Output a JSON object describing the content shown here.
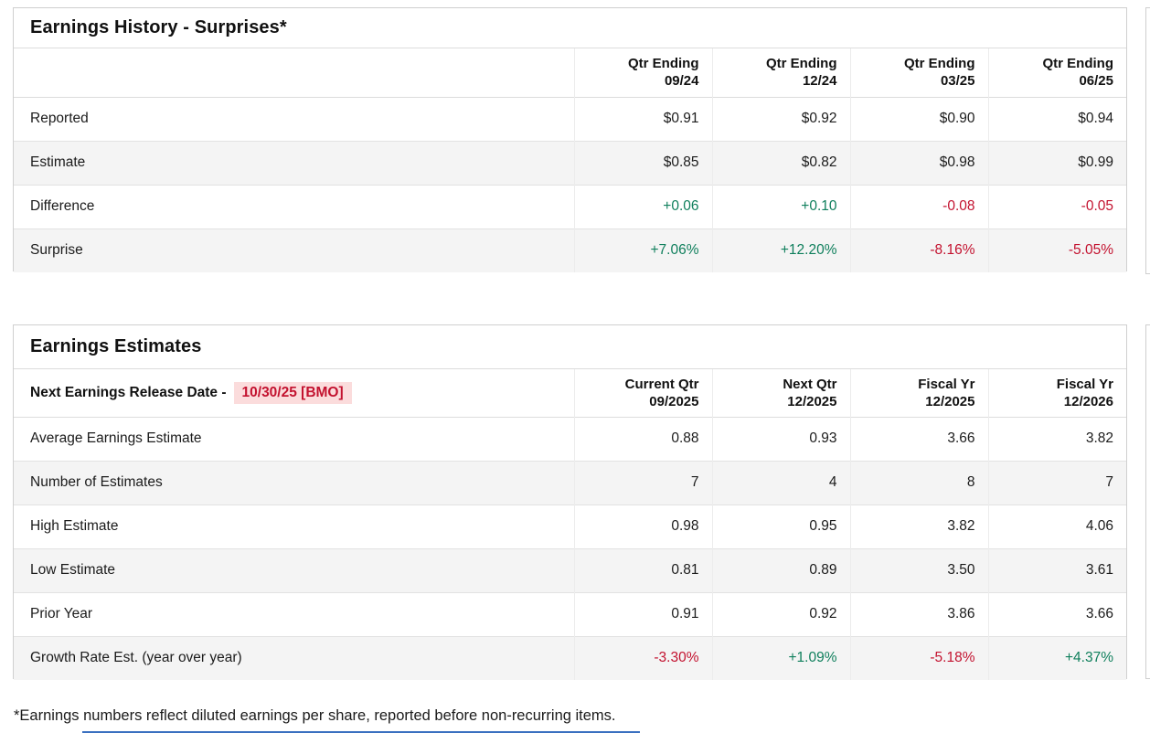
{
  "colors": {
    "positive_green": "#0f7f5c",
    "negative_red": "#c3122f",
    "highlight_pink": "#fbdcdc",
    "panel_border": "#cfcfcf",
    "divider": "#dcdcdc",
    "row_divider": "#e2e2e2",
    "cell_divider": "#ececec",
    "row_alt_bg": "#f4f4f4",
    "cutoff_blue": "#3a70c0"
  },
  "earnings_history": {
    "title": "Earnings History - Surprises*",
    "columns": [
      {
        "top": "Qtr Ending",
        "bottom": "09/24"
      },
      {
        "top": "Qtr Ending",
        "bottom": "12/24"
      },
      {
        "top": "Qtr Ending",
        "bottom": "03/25"
      },
      {
        "top": "Qtr Ending",
        "bottom": "06/25"
      }
    ],
    "rows": [
      {
        "label": "Reported",
        "values": [
          "$0.91",
          "$0.92",
          "$0.90",
          "$0.94"
        ]
      },
      {
        "label": "Estimate",
        "values": [
          "$0.85",
          "$0.82",
          "$0.98",
          "$0.99"
        ]
      },
      {
        "label": "Difference",
        "values": [
          "+0.06",
          "+0.10",
          "-0.08",
          "-0.05"
        ],
        "tones": [
          "pos",
          "pos",
          "neg",
          "neg"
        ]
      },
      {
        "label": "Surprise",
        "values": [
          "+7.06%",
          "+12.20%",
          "-8.16%",
          "-5.05%"
        ],
        "tones": [
          "pos",
          "pos",
          "neg",
          "neg"
        ]
      }
    ]
  },
  "earnings_estimates": {
    "title": "Earnings Estimates",
    "release_date_label": "Next Earnings Release Date -",
    "release_date_value": "10/30/25 [BMO]",
    "columns": [
      {
        "top": "Current Qtr",
        "bottom": "09/2025"
      },
      {
        "top": "Next Qtr",
        "bottom": "12/2025"
      },
      {
        "top": "Fiscal Yr",
        "bottom": "12/2025"
      },
      {
        "top": "Fiscal Yr",
        "bottom": "12/2026"
      }
    ],
    "rows": [
      {
        "label": "Average Earnings Estimate",
        "values": [
          "0.88",
          "0.93",
          "3.66",
          "3.82"
        ]
      },
      {
        "label": "Number of Estimates",
        "values": [
          "7",
          "4",
          "8",
          "7"
        ]
      },
      {
        "label": "High Estimate",
        "values": [
          "0.98",
          "0.95",
          "3.82",
          "4.06"
        ]
      },
      {
        "label": "Low Estimate",
        "values": [
          "0.81",
          "0.89",
          "3.50",
          "3.61"
        ]
      },
      {
        "label": "Prior Year",
        "values": [
          "0.91",
          "0.92",
          "3.86",
          "3.66"
        ]
      },
      {
        "label": "Growth Rate Est. (year over year)",
        "values": [
          "-3.30%",
          "+1.09%",
          "-5.18%",
          "+4.37%"
        ],
        "tones": [
          "neg",
          "pos",
          "neg",
          "pos"
        ]
      }
    ]
  },
  "footnote": "*Earnings numbers reflect diluted earnings per share, reported before non-recurring items."
}
